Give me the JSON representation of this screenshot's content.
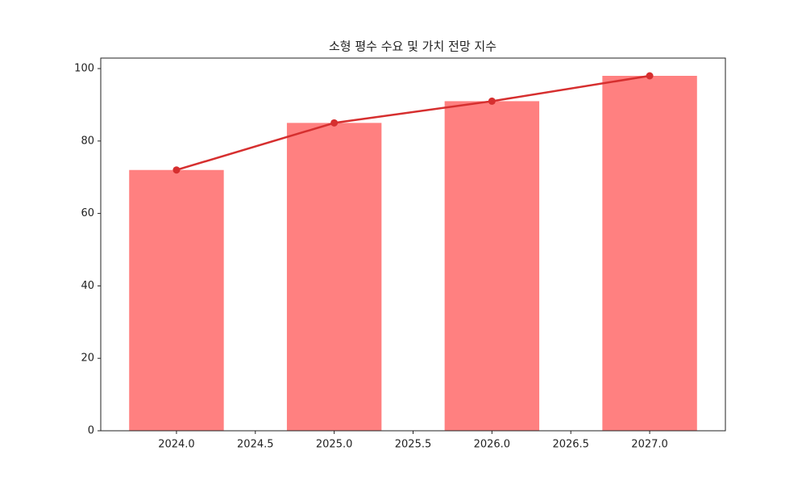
{
  "chart_data": {
    "type": "bar-line",
    "title": "소형 평수 수요 및 가치 전망 지수",
    "x": [
      2024,
      2025,
      2026,
      2027
    ],
    "series": [
      {
        "type": "bar",
        "color": "#ff8080",
        "values": [
          72,
          85,
          91,
          98
        ]
      },
      {
        "type": "line",
        "color": "#d62f2f",
        "values": [
          72,
          85,
          91,
          98
        ]
      }
    ],
    "xlim": [
      2023.52,
      2027.48
    ],
    "xticks": [
      {
        "value": 2024,
        "label": "2024.0"
      },
      {
        "value": 2024.5,
        "label": "2024.5"
      },
      {
        "value": 2025,
        "label": "2025.0"
      },
      {
        "value": 2025.5,
        "label": "2025.5"
      },
      {
        "value": 2026,
        "label": "2026.0"
      },
      {
        "value": 2026.5,
        "label": "2026.5"
      },
      {
        "value": 2027,
        "label": "2027.0"
      }
    ],
    "ylim": [
      0,
      102.9
    ],
    "yticks": [
      0,
      20,
      40,
      60,
      80,
      100
    ]
  }
}
